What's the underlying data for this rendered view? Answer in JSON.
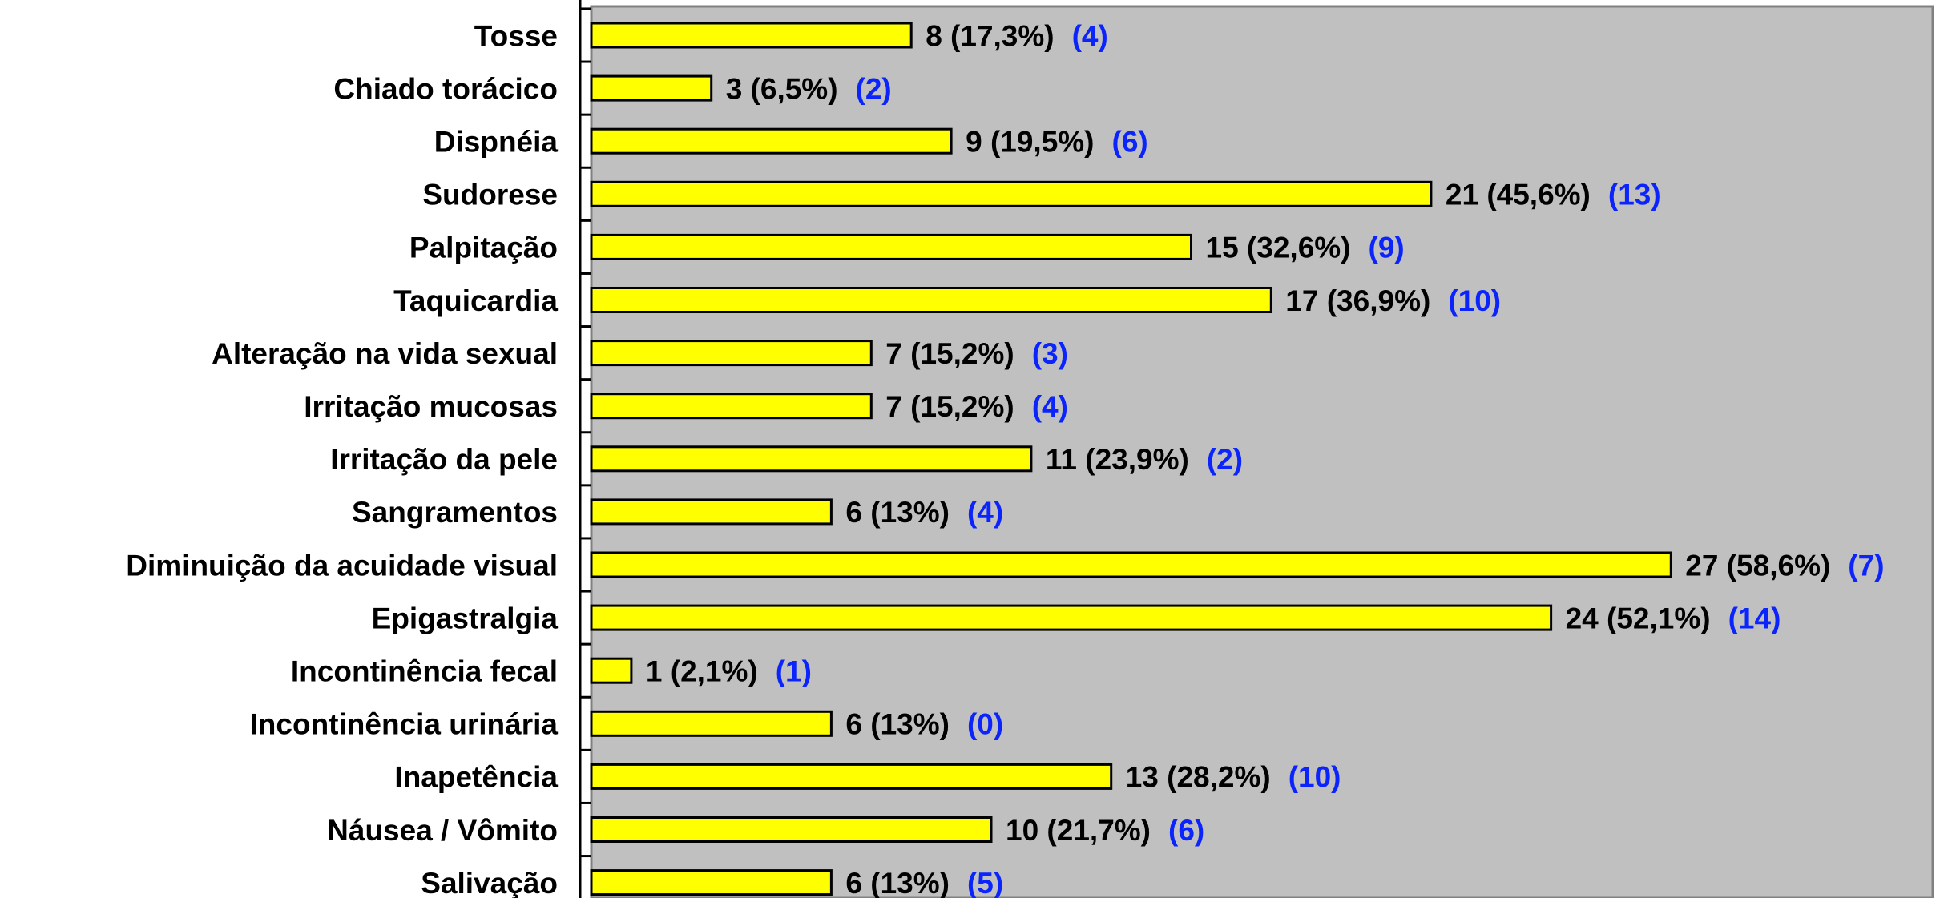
{
  "chart_data": {
    "type": "bar",
    "orientation": "horizontal",
    "grid": false,
    "legend": "none",
    "xlim": [
      0,
      32
    ],
    "colors": {
      "plot_background": "#c0c0c0",
      "bar_fill": "#ffff00",
      "bar_stroke": "#000000",
      "value_label": "#000000",
      "secondary_label": "#0b24fb"
    },
    "categories": [
      "Tosse",
      "Chiado torácico",
      "Dispnéia",
      "Sudorese",
      "Palpitação",
      "Taquicardia",
      "Alteração na vida sexual",
      "Irritação mucosas",
      "Irritação da pele",
      "Sangramentos",
      "Diminuição da acuidade visual",
      "Epigastralgia",
      "Incontinência fecal",
      "Incontinência urinária",
      "Inapetência",
      "Náusea / Vômito",
      "Salivação"
    ],
    "values": [
      8,
      3,
      9,
      21,
      15,
      17,
      7,
      7,
      11,
      6,
      27,
      24,
      1,
      6,
      13,
      10,
      6
    ],
    "value_labels": [
      "8 (17,3%)",
      "3 (6,5%)",
      "9 (19,5%)",
      "21 (45,6%)",
      "15 (32,6%)",
      "17 (36,9%)",
      "7 (15,2%)",
      "7 (15,2%)",
      "11 (23,9%)",
      "6 (13%)",
      "27 (58,6%)",
      "24 (52,1%)",
      "1 (2,1%)",
      "6 (13%)",
      "13 (28,2%)",
      "10 (21,7%)",
      "6 (13%)"
    ],
    "secondary_labels": [
      "(4)",
      "(2)",
      "(6)",
      "(13)",
      "(9)",
      "(10)",
      "(3)",
      "(4)",
      "(2)",
      "(4)",
      "(7)",
      "(14)",
      "(1)",
      "(0)",
      "(10)",
      "(6)",
      "(5)"
    ]
  }
}
